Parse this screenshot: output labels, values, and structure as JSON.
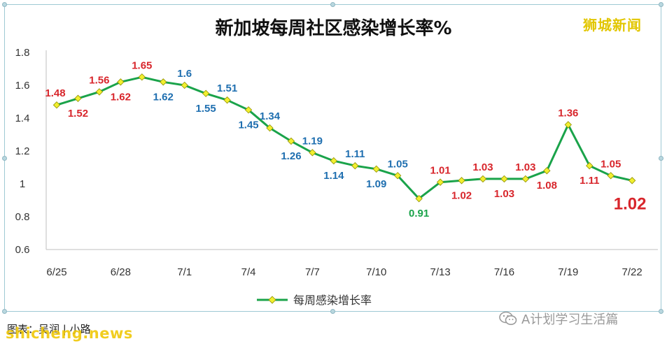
{
  "title": "新加坡每周社区感染增长率%",
  "watermark": "狮城新闻",
  "source_note": "图表：吴润 | 小路",
  "site_mark": "shicheng.news",
  "wechat_label": "A计划学习生活篇",
  "colors": {
    "line": "#1aa34a",
    "marker_fill": "#f1ef2f",
    "marker_stroke": "#8f8f00",
    "label_red": "#d8262c",
    "label_blue": "#1f6fb0",
    "label_green": "#1aa34a",
    "grid": "#d9d9d9"
  },
  "chart_data": {
    "type": "line",
    "title": "新加坡每周社区感染增长率%",
    "xlabel": "",
    "ylabel": "",
    "ylim": [
      0.6,
      1.8
    ],
    "yticks": [
      "0.6",
      "0.8",
      "1",
      "1.2",
      "1.4",
      "1.6",
      "1.8"
    ],
    "ytick_values": [
      0.6,
      0.8,
      1.0,
      1.2,
      1.4,
      1.6,
      1.8
    ],
    "grid": false,
    "legend_position": "bottom",
    "x": [
      "6/25",
      "6/26",
      "6/27",
      "6/28",
      "6/29",
      "6/30",
      "7/1",
      "7/2",
      "7/3",
      "7/4",
      "7/5",
      "7/6",
      "7/7",
      "7/8",
      "7/9",
      "7/10",
      "7/11",
      "7/12",
      "7/13",
      "7/14",
      "7/15",
      "7/16",
      "7/17",
      "7/18",
      "7/19",
      "7/20",
      "7/21",
      "7/22"
    ],
    "xticks": [
      "6/25",
      "6/28",
      "7/1",
      "7/4",
      "7/7",
      "7/10",
      "7/13",
      "7/16",
      "7/19",
      "7/22"
    ],
    "series": [
      {
        "name": "每周感染增长率",
        "values": [
          1.48,
          1.52,
          1.56,
          1.62,
          1.65,
          1.62,
          1.6,
          1.55,
          1.51,
          1.45,
          1.34,
          1.26,
          1.19,
          1.14,
          1.11,
          1.09,
          1.05,
          0.91,
          1.01,
          1.02,
          1.03,
          1.03,
          1.03,
          1.08,
          1.36,
          1.11,
          1.05,
          1.02
        ]
      }
    ],
    "data_labels": [
      {
        "text": "1.48",
        "color": "red",
        "pos": "above"
      },
      {
        "text": "1.52",
        "color": "red",
        "pos": "below"
      },
      {
        "text": "1.56",
        "color": "red",
        "pos": "above"
      },
      {
        "text": "1.62",
        "color": "red",
        "pos": "below"
      },
      {
        "text": "1.65",
        "color": "red",
        "pos": "above"
      },
      {
        "text": "1.62",
        "color": "blue",
        "pos": "below"
      },
      {
        "text": "1.6",
        "color": "blue",
        "pos": "above"
      },
      {
        "text": "1.55",
        "color": "blue",
        "pos": "below"
      },
      {
        "text": "1.51",
        "color": "blue",
        "pos": "above"
      },
      {
        "text": "1.45",
        "color": "blue",
        "pos": "below"
      },
      {
        "text": "1.34",
        "color": "blue",
        "pos": "above"
      },
      {
        "text": "1.26",
        "color": "blue",
        "pos": "below"
      },
      {
        "text": "1.19",
        "color": "blue",
        "pos": "above"
      },
      {
        "text": "1.14",
        "color": "blue",
        "pos": "below"
      },
      {
        "text": "1.11",
        "color": "blue",
        "pos": "above"
      },
      {
        "text": "1.09",
        "color": "blue",
        "pos": "below"
      },
      {
        "text": "1.05",
        "color": "blue",
        "pos": "above"
      },
      {
        "text": "0.91",
        "color": "green",
        "pos": "below"
      },
      {
        "text": "1.01",
        "color": "red",
        "pos": "above"
      },
      {
        "text": "1.02",
        "color": "red",
        "pos": "below"
      },
      {
        "text": "1.03",
        "color": "red",
        "pos": "above"
      },
      {
        "text": "1.03",
        "color": "red",
        "pos": "below"
      },
      {
        "text": "1.03",
        "color": "red",
        "pos": "above"
      },
      {
        "text": "1.08",
        "color": "red",
        "pos": "below"
      },
      {
        "text": "1.36",
        "color": "red",
        "pos": "above"
      },
      {
        "text": "1.11",
        "color": "red",
        "pos": "below"
      },
      {
        "text": "1.05",
        "color": "red",
        "pos": "above"
      },
      {
        "text": "1.02",
        "color": "red",
        "pos": "below-big"
      }
    ]
  }
}
